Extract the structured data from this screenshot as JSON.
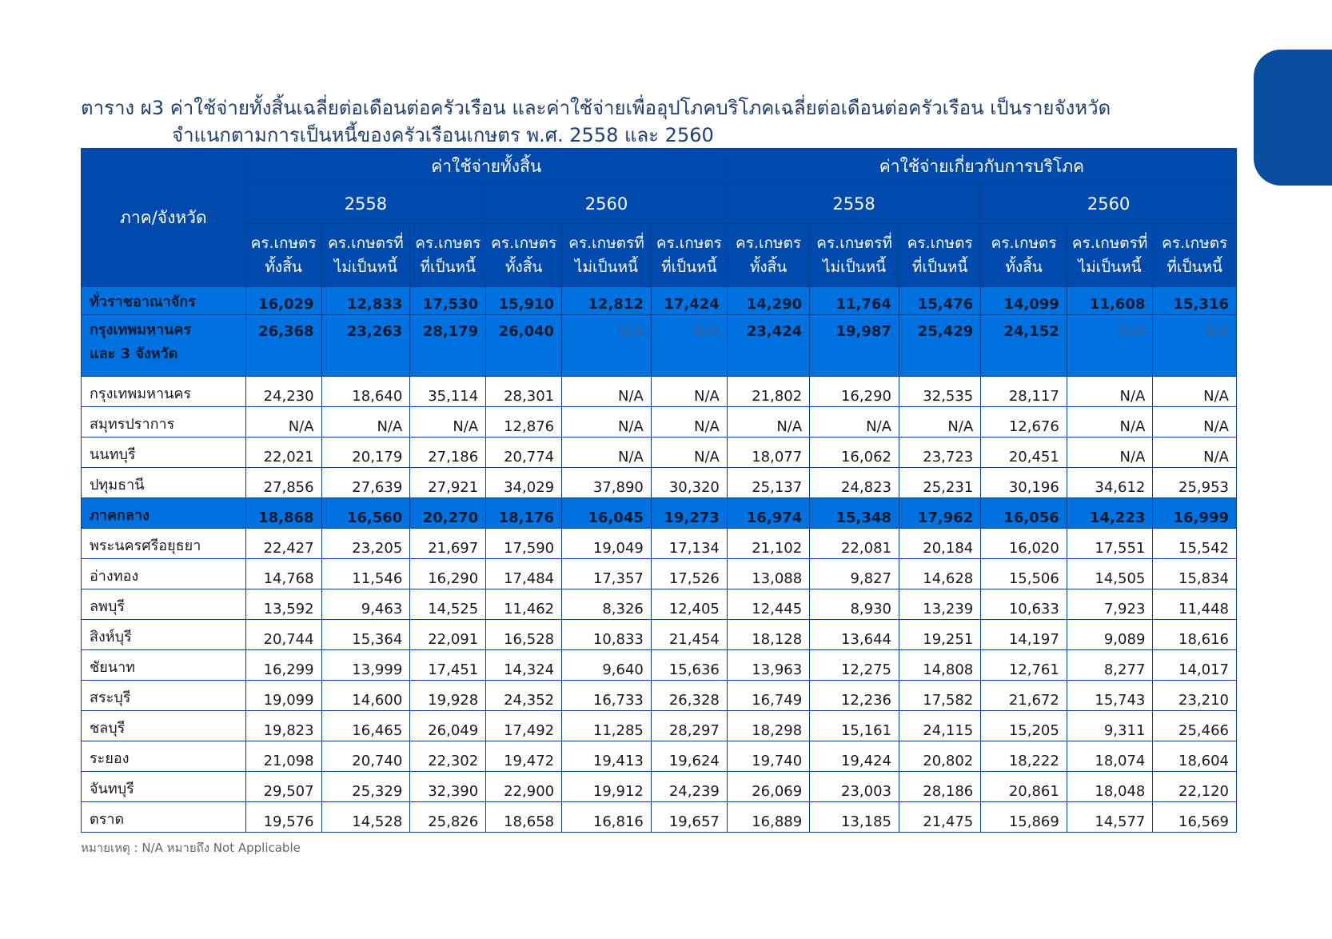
{
  "title": {
    "line1": "ตาราง ผ3 ค่าใช้จ่ายทั้งสิ้นเฉลี่ยต่อเดือนต่อครัวเรือน และค่าใช้จ่ายเพื่ออุปโภคบริโภคเฉลี่ยต่อเดือนต่อครัวเรือน เป็นรายจังหวัด",
    "line2": "จำแนกตามการเป็นหนี้ของครัวเรือนเกษตร พ.ศ. 2558 และ 2560"
  },
  "header": {
    "region": "ภาค/จังหวัด",
    "group_total": "ค่าใช้จ่ายทั้งสิ้น",
    "group_consumption": "ค่าใช้จ่ายเกี่ยวกับการบริโภค",
    "year_2558": "2558",
    "year_2560": "2560",
    "cols": [
      [
        "คร.เกษตร",
        "ทั้งสิ้น"
      ],
      [
        "คร.เกษตรที่",
        "ไม่เป็นหนี้"
      ],
      [
        "คร.เกษตร",
        "ที่เป็นหนี้"
      ]
    ]
  },
  "rows": [
    {
      "name": "ทั่วราชอาณาจักร",
      "total": true,
      "values": [
        "16,029",
        "12,833",
        "17,530",
        "15,910",
        "12,812",
        "17,424",
        "14,290",
        "11,764",
        "15,476",
        "14,099",
        "11,608",
        "15,316"
      ]
    },
    {
      "name": "กรุงเทพมหานคร",
      "name2": "และ 3 จังหวัด",
      "total": true,
      "values": [
        "26,368",
        "23,263",
        "28,179",
        "26,040",
        "N/A",
        "N/A",
        "23,424",
        "19,987",
        "25,429",
        "24,152",
        "N/A",
        "N/A"
      ]
    },
    {
      "name": "กรุงเทพมหานคร",
      "values": [
        "24,230",
        "18,640",
        "35,114",
        "28,301",
        "N/A",
        "N/A",
        "21,802",
        "16,290",
        "32,535",
        "28,117",
        "N/A",
        "N/A"
      ]
    },
    {
      "name": "สมุทรปราการ",
      "values": [
        "N/A",
        "N/A",
        "N/A",
        "12,876",
        "N/A",
        "N/A",
        "N/A",
        "N/A",
        "N/A",
        "12,676",
        "N/A",
        "N/A"
      ]
    },
    {
      "name": "นนทบุรี",
      "values": [
        "22,021",
        "20,179",
        "27,186",
        "20,774",
        "N/A",
        "N/A",
        "18,077",
        "16,062",
        "23,723",
        "20,451",
        "N/A",
        "N/A"
      ]
    },
    {
      "name": "ปทุมธานี",
      "values": [
        "27,856",
        "27,639",
        "27,921",
        "34,029",
        "37,890",
        "30,320",
        "25,137",
        "24,823",
        "25,231",
        "30,196",
        "34,612",
        "25,953"
      ]
    },
    {
      "name": "ภาคกลาง",
      "total": true,
      "values": [
        "18,868",
        "16,560",
        "20,270",
        "18,176",
        "16,045",
        "19,273",
        "16,974",
        "15,348",
        "17,962",
        "16,056",
        "14,223",
        "16,999"
      ]
    },
    {
      "name": "พระนครศรีอยุธยา",
      "values": [
        "22,427",
        "23,205",
        "21,697",
        "17,590",
        "19,049",
        "17,134",
        "21,102",
        "22,081",
        "20,184",
        "16,020",
        "17,551",
        "15,542"
      ]
    },
    {
      "name": "อ่างทอง",
      "values": [
        "14,768",
        "11,546",
        "16,290",
        "17,484",
        "17,357",
        "17,526",
        "13,088",
        "9,827",
        "14,628",
        "15,506",
        "14,505",
        "15,834"
      ]
    },
    {
      "name": "ลพบุรี",
      "values": [
        "13,592",
        "9,463",
        "14,525",
        "11,462",
        "8,326",
        "12,405",
        "12,445",
        "8,930",
        "13,239",
        "10,633",
        "7,923",
        "11,448"
      ]
    },
    {
      "name": "สิงห์บุรี",
      "values": [
        "20,744",
        "15,364",
        "22,091",
        "16,528",
        "10,833",
        "21,454",
        "18,128",
        "13,644",
        "19,251",
        "14,197",
        "9,089",
        "18,616"
      ]
    },
    {
      "name": "ชัยนาท",
      "values": [
        "16,299",
        "13,999",
        "17,451",
        "14,324",
        "9,640",
        "15,636",
        "13,963",
        "12,275",
        "14,808",
        "12,761",
        "8,277",
        "14,017"
      ]
    },
    {
      "name": "สระบุรี",
      "values": [
        "19,099",
        "14,600",
        "19,928",
        "24,352",
        "16,733",
        "26,328",
        "16,749",
        "12,236",
        "17,582",
        "21,672",
        "15,743",
        "23,210"
      ]
    },
    {
      "name": "ชลบุรี",
      "values": [
        "19,823",
        "16,465",
        "26,049",
        "17,492",
        "11,285",
        "28,297",
        "18,298",
        "15,161",
        "24,115",
        "15,205",
        "9,311",
        "25,466"
      ]
    },
    {
      "name": "ระยอง",
      "values": [
        "21,098",
        "20,740",
        "22,302",
        "19,472",
        "19,413",
        "19,624",
        "19,740",
        "19,424",
        "20,802",
        "18,222",
        "18,074",
        "18,604"
      ]
    },
    {
      "name": "จันทบุรี",
      "values": [
        "29,507",
        "25,329",
        "32,390",
        "22,900",
        "19,912",
        "24,239",
        "26,069",
        "23,003",
        "28,186",
        "20,861",
        "18,048",
        "22,120"
      ]
    },
    {
      "name": "ตราด",
      "values": [
        "19,576",
        "14,528",
        "25,826",
        "18,658",
        "16,816",
        "19,657",
        "16,889",
        "13,185",
        "21,475",
        "15,869",
        "14,577",
        "16,569"
      ]
    }
  ],
  "note": "หมายเหตุ : N/A หมายถึง Not Applicable"
}
